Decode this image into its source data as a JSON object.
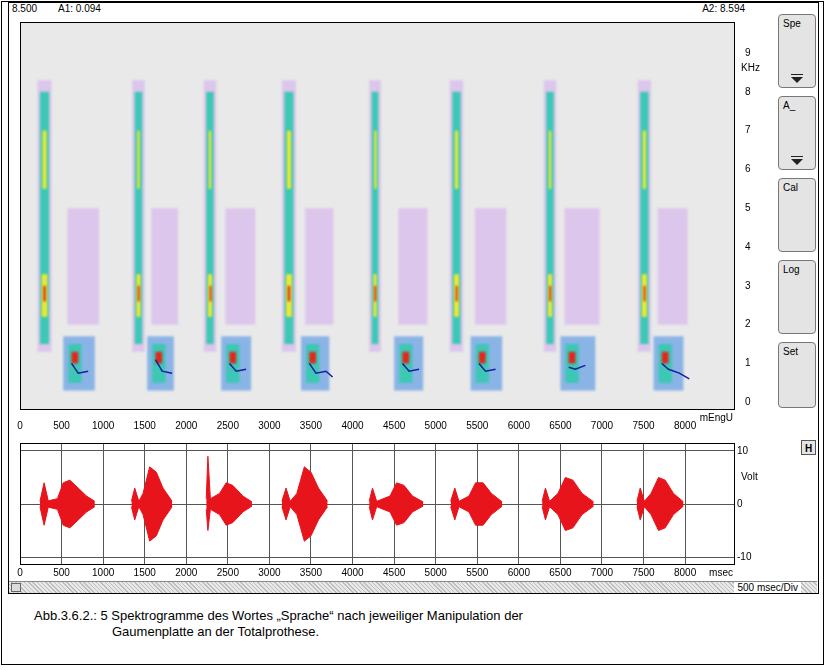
{
  "header": [
    "8.500",
    "A1: 0.094",
    "A2: 8.594"
  ],
  "buttons": [
    "Spe",
    "A_",
    "Cal",
    "Log",
    "Set"
  ],
  "waveform_button": "H",
  "scale_label": "500 msec/Div",
  "caption": "Abb.3.6.2.: 5 Spektrogramme des Wortes „Sprache“ nach jeweiliger Manipulation der Gaumenplatte an der Totalprothese.",
  "chart_data": [
    {
      "type": "heatmap",
      "xlim": [
        0,
        8600
      ],
      "xticks": [
        0,
        500,
        1000,
        1500,
        2000,
        2500,
        3000,
        3500,
        4000,
        4500,
        5000,
        5500,
        6000,
        6500,
        7000,
        7500,
        8000
      ],
      "xlabel": "mEngU",
      "ylim": [
        -0.2,
        9.8
      ],
      "yticks": [
        0,
        1,
        2,
        3,
        4,
        5,
        6,
        7,
        8,
        9
      ],
      "ylabel": "KHz",
      "grid": false,
      "colors": [
        "#dcc6ec",
        "#8ab4e6",
        "#3cc8b4",
        "#ece832",
        "#e2261c"
      ],
      "cells": [
        {
          "t": [
            570,
            950
          ],
          "f": [
            2.0,
            5.0
          ],
          "level": 0
        },
        {
          "t": [
            210,
            380
          ],
          "f": [
            1.3,
            8.3
          ],
          "level": 0
        },
        {
          "t": [
            240,
            350
          ],
          "f": [
            1.5,
            8.0
          ],
          "level": 2
        },
        {
          "t": [
            520,
            900
          ],
          "f": [
            0.3,
            1.7
          ],
          "level": 1
        },
        {
          "t": [
            580,
            740
          ],
          "f": [
            0.5,
            1.5
          ],
          "level": 2
        },
        {
          "t": [
            260,
            330
          ],
          "f": [
            2.2,
            3.3
          ],
          "level": 3
        },
        {
          "t": [
            270,
            320
          ],
          "f": [
            5.5,
            7.0
          ],
          "level": 3
        },
        {
          "t": [
            280,
            310
          ],
          "f": [
            2.6,
            3.0
          ],
          "level": 4
        },
        {
          "t": [
            620,
            700
          ],
          "f": [
            1.0,
            1.3
          ],
          "level": 4
        },
        {
          "t": [
            1580,
            1900
          ],
          "f": [
            2.0,
            5.0
          ],
          "level": 0
        },
        {
          "t": [
            1350,
            1500
          ],
          "f": [
            1.3,
            8.3
          ],
          "level": 0
        },
        {
          "t": [
            1380,
            1470
          ],
          "f": [
            1.5,
            8.0
          ],
          "level": 2
        },
        {
          "t": [
            1530,
            1850
          ],
          "f": [
            0.3,
            1.7
          ],
          "level": 1
        },
        {
          "t": [
            1590,
            1750
          ],
          "f": [
            0.5,
            1.5
          ],
          "level": 2
        },
        {
          "t": [
            1400,
            1450
          ],
          "f": [
            2.2,
            3.3
          ],
          "level": 3
        },
        {
          "t": [
            1410,
            1440
          ],
          "f": [
            5.5,
            7.0
          ],
          "level": 3
        },
        {
          "t": [
            1415,
            1435
          ],
          "f": [
            2.6,
            3.0
          ],
          "level": 4
        },
        {
          "t": [
            1630,
            1710
          ],
          "f": [
            1.0,
            1.3
          ],
          "level": 4
        },
        {
          "t": [
            2470,
            2830
          ],
          "f": [
            2.0,
            5.0
          ],
          "level": 0
        },
        {
          "t": [
            2210,
            2360
          ],
          "f": [
            1.3,
            8.3
          ],
          "level": 0
        },
        {
          "t": [
            2240,
            2330
          ],
          "f": [
            1.5,
            8.0
          ],
          "level": 2
        },
        {
          "t": [
            2420,
            2780
          ],
          "f": [
            0.3,
            1.7
          ],
          "level": 1
        },
        {
          "t": [
            2480,
            2640
          ],
          "f": [
            0.5,
            1.5
          ],
          "level": 2
        },
        {
          "t": [
            2260,
            2310
          ],
          "f": [
            2.2,
            3.3
          ],
          "level": 3
        },
        {
          "t": [
            2270,
            2300
          ],
          "f": [
            5.5,
            7.0
          ],
          "level": 3
        },
        {
          "t": [
            2280,
            2300
          ],
          "f": [
            2.6,
            3.0
          ],
          "level": 4
        },
        {
          "t": [
            2520,
            2600
          ],
          "f": [
            1.0,
            1.3
          ],
          "level": 4
        },
        {
          "t": [
            3430,
            3770
          ],
          "f": [
            2.0,
            5.0
          ],
          "level": 0
        },
        {
          "t": [
            3150,
            3320
          ],
          "f": [
            1.3,
            8.3
          ],
          "level": 0
        },
        {
          "t": [
            3180,
            3290
          ],
          "f": [
            1.5,
            8.0
          ],
          "level": 2
        },
        {
          "t": [
            3380,
            3720
          ],
          "f": [
            0.3,
            1.7
          ],
          "level": 1
        },
        {
          "t": [
            3440,
            3600
          ],
          "f": [
            0.5,
            1.5
          ],
          "level": 2
        },
        {
          "t": [
            3200,
            3270
          ],
          "f": [
            2.2,
            3.3
          ],
          "level": 3
        },
        {
          "t": [
            3210,
            3260
          ],
          "f": [
            5.5,
            7.0
          ],
          "level": 3
        },
        {
          "t": [
            3220,
            3250
          ],
          "f": [
            2.6,
            3.0
          ],
          "level": 4
        },
        {
          "t": [
            3480,
            3560
          ],
          "f": [
            1.0,
            1.3
          ],
          "level": 4
        },
        {
          "t": [
            4550,
            4900
          ],
          "f": [
            2.0,
            5.0
          ],
          "level": 0
        },
        {
          "t": [
            4200,
            4340
          ],
          "f": [
            1.3,
            8.3
          ],
          "level": 0
        },
        {
          "t": [
            4230,
            4310
          ],
          "f": [
            1.5,
            8.0
          ],
          "level": 2
        },
        {
          "t": [
            4500,
            4850
          ],
          "f": [
            0.3,
            1.7
          ],
          "level": 1
        },
        {
          "t": [
            4560,
            4720
          ],
          "f": [
            0.5,
            1.5
          ],
          "level": 2
        },
        {
          "t": [
            4250,
            4290
          ],
          "f": [
            2.2,
            3.3
          ],
          "level": 3
        },
        {
          "t": [
            4260,
            4290
          ],
          "f": [
            5.5,
            7.0
          ],
          "level": 3
        },
        {
          "t": [
            4260,
            4280
          ],
          "f": [
            2.6,
            3.0
          ],
          "level": 4
        },
        {
          "t": [
            4600,
            4680
          ],
          "f": [
            1.0,
            1.3
          ],
          "level": 4
        },
        {
          "t": [
            5470,
            5850
          ],
          "f": [
            2.0,
            5.0
          ],
          "level": 0
        },
        {
          "t": [
            5170,
            5330
          ],
          "f": [
            1.3,
            8.3
          ],
          "level": 0
        },
        {
          "t": [
            5200,
            5300
          ],
          "f": [
            1.5,
            8.0
          ],
          "level": 2
        },
        {
          "t": [
            5420,
            5800
          ],
          "f": [
            0.3,
            1.7
          ],
          "level": 1
        },
        {
          "t": [
            5480,
            5640
          ],
          "f": [
            0.5,
            1.5
          ],
          "level": 2
        },
        {
          "t": [
            5220,
            5280
          ],
          "f": [
            2.2,
            3.3
          ],
          "level": 3
        },
        {
          "t": [
            5230,
            5270
          ],
          "f": [
            5.5,
            7.0
          ],
          "level": 3
        },
        {
          "t": [
            5240,
            5260
          ],
          "f": [
            2.6,
            3.0
          ],
          "level": 4
        },
        {
          "t": [
            5520,
            5600
          ],
          "f": [
            1.0,
            1.3
          ],
          "level": 4
        },
        {
          "t": [
            6550,
            6970
          ],
          "f": [
            2.0,
            5.0
          ],
          "level": 0
        },
        {
          "t": [
            6300,
            6450
          ],
          "f": [
            1.3,
            8.3
          ],
          "level": 0
        },
        {
          "t": [
            6330,
            6420
          ],
          "f": [
            1.5,
            8.0
          ],
          "level": 2
        },
        {
          "t": [
            6500,
            6920
          ],
          "f": [
            0.3,
            1.7
          ],
          "level": 1
        },
        {
          "t": [
            6560,
            6720
          ],
          "f": [
            0.5,
            1.5
          ],
          "level": 2
        },
        {
          "t": [
            6350,
            6400
          ],
          "f": [
            2.2,
            3.3
          ],
          "level": 3
        },
        {
          "t": [
            6360,
            6390
          ],
          "f": [
            5.5,
            7.0
          ],
          "level": 3
        },
        {
          "t": [
            6365,
            6385
          ],
          "f": [
            2.6,
            3.0
          ],
          "level": 4
        },
        {
          "t": [
            6600,
            6680
          ],
          "f": [
            1.0,
            1.3
          ],
          "level": 4
        },
        {
          "t": [
            7670,
            8030
          ],
          "f": [
            2.0,
            5.0
          ],
          "level": 0
        },
        {
          "t": [
            7430,
            7590
          ],
          "f": [
            1.3,
            8.3
          ],
          "level": 0
        },
        {
          "t": [
            7460,
            7560
          ],
          "f": [
            1.5,
            8.0
          ],
          "level": 2
        },
        {
          "t": [
            7620,
            7980
          ],
          "f": [
            0.3,
            1.7
          ],
          "level": 1
        },
        {
          "t": [
            7680,
            7840
          ],
          "f": [
            0.5,
            1.5
          ],
          "level": 2
        },
        {
          "t": [
            7480,
            7540
          ],
          "f": [
            2.2,
            3.3
          ],
          "level": 3
        },
        {
          "t": [
            7490,
            7530
          ],
          "f": [
            5.5,
            7.0
          ],
          "level": 3
        },
        {
          "t": [
            7500,
            7520
          ],
          "f": [
            2.6,
            3.0
          ],
          "level": 4
        },
        {
          "t": [
            7720,
            7800
          ],
          "f": [
            1.0,
            1.3
          ],
          "level": 4
        }
      ],
      "track_color": "#1a1aa0",
      "tracks": [
        [
          [
            620,
            1.0
          ],
          [
            700,
            0.75
          ],
          [
            820,
            0.8
          ]
        ],
        [
          [
            1630,
            1.1
          ],
          [
            1710,
            0.8
          ],
          [
            1830,
            0.75
          ]
        ],
        [
          [
            2520,
            1.0
          ],
          [
            2600,
            0.8
          ],
          [
            2720,
            0.85
          ]
        ],
        [
          [
            3480,
            1.0
          ],
          [
            3560,
            0.75
          ],
          [
            3680,
            0.8
          ],
          [
            3760,
            0.65
          ]
        ],
        [
          [
            4600,
            1.0
          ],
          [
            4680,
            0.8
          ],
          [
            4800,
            0.85
          ]
        ],
        [
          [
            5520,
            1.0
          ],
          [
            5600,
            0.8
          ],
          [
            5720,
            0.85
          ]
        ],
        [
          [
            6600,
            0.9
          ],
          [
            6680,
            0.85
          ],
          [
            6800,
            0.95
          ]
        ],
        [
          [
            7720,
            1.0
          ],
          [
            7800,
            0.85
          ],
          [
            7930,
            0.75
          ],
          [
            8050,
            0.6
          ]
        ]
      ]
    },
    {
      "type": "line",
      "xlim": [
        0,
        8600
      ],
      "xticks": [
        0,
        500,
        1000,
        1500,
        2000,
        2500,
        3000,
        3500,
        4000,
        4500,
        5000,
        5500,
        6000,
        6500,
        7000,
        7500,
        8000
      ],
      "xlabel": "msec",
      "ylim": [
        -11.5,
        11.5
      ],
      "yticks": [
        -10,
        0,
        10
      ],
      "ylabel": "Volt",
      "grid": true,
      "color": "#e8141c",
      "bursts": [
        {
          "t": [
            240,
            290,
            340,
            450,
            520,
            600,
            700,
            800,
            900
          ],
          "max": [
            0.5,
            4,
            0.6,
            1,
            4,
            4.5,
            3,
            1.5,
            0.5
          ],
          "min": [
            -0.5,
            -4,
            -0.6,
            -1,
            -4,
            -4.5,
            -3,
            -1.5,
            -0.5
          ]
        },
        {
          "t": [
            1340,
            1380,
            1430,
            1480,
            1560,
            1640,
            1720,
            1830
          ],
          "max": [
            0.5,
            3,
            0.5,
            2,
            7,
            6,
            3,
            0.5
          ],
          "min": [
            -0.5,
            -3,
            -0.5,
            -2,
            -7,
            -6,
            -3,
            -0.5
          ]
        },
        {
          "t": [
            2240,
            2260,
            2290,
            2400,
            2480,
            2560,
            2680,
            2790
          ],
          "max": [
            1,
            9,
            1,
            2,
            4,
            3.5,
            1.5,
            0.4
          ],
          "min": [
            -1,
            -5,
            -1,
            -2,
            -4,
            -3.5,
            -1.5,
            -0.4
          ]
        },
        {
          "t": [
            3150,
            3200,
            3250,
            3330,
            3420,
            3500,
            3590,
            3700
          ],
          "max": [
            0.5,
            3,
            0.5,
            2,
            7,
            6,
            3,
            0.5
          ],
          "min": [
            -0.5,
            -3,
            -0.5,
            -2,
            -7,
            -6,
            -3,
            -0.5
          ]
        },
        {
          "t": [
            4200,
            4240,
            4290,
            4450,
            4530,
            4620,
            4720,
            4850
          ],
          "max": [
            0.5,
            3,
            0.5,
            1.5,
            4,
            3.5,
            1.5,
            0.4
          ],
          "min": [
            -0.5,
            -3,
            -0.5,
            -1.5,
            -4,
            -3.5,
            -1.5,
            -0.4
          ]
        },
        {
          "t": [
            5180,
            5230,
            5280,
            5400,
            5480,
            5570,
            5670,
            5800
          ],
          "max": [
            0.5,
            3,
            0.5,
            1.5,
            4,
            4,
            2,
            0.4
          ],
          "min": [
            -0.5,
            -3,
            -0.5,
            -1.5,
            -4,
            -4,
            -2,
            -0.4
          ]
        },
        {
          "t": [
            6280,
            6320,
            6370,
            6470,
            6560,
            6650,
            6760,
            6900
          ],
          "max": [
            0.5,
            3,
            0.5,
            2,
            5,
            4.5,
            2,
            0.4
          ],
          "min": [
            -0.5,
            -3,
            -0.5,
            -2,
            -5,
            -4.5,
            -2,
            -0.4
          ]
        },
        {
          "t": [
            7420,
            7460,
            7510,
            7590,
            7680,
            7760,
            7860,
            7980
          ],
          "max": [
            0.5,
            3,
            0.5,
            2,
            5,
            4.5,
            2,
            0.4
          ],
          "min": [
            -0.5,
            -3,
            -0.5,
            -2,
            -5,
            -4.5,
            -2,
            -0.4
          ]
        }
      ]
    }
  ]
}
